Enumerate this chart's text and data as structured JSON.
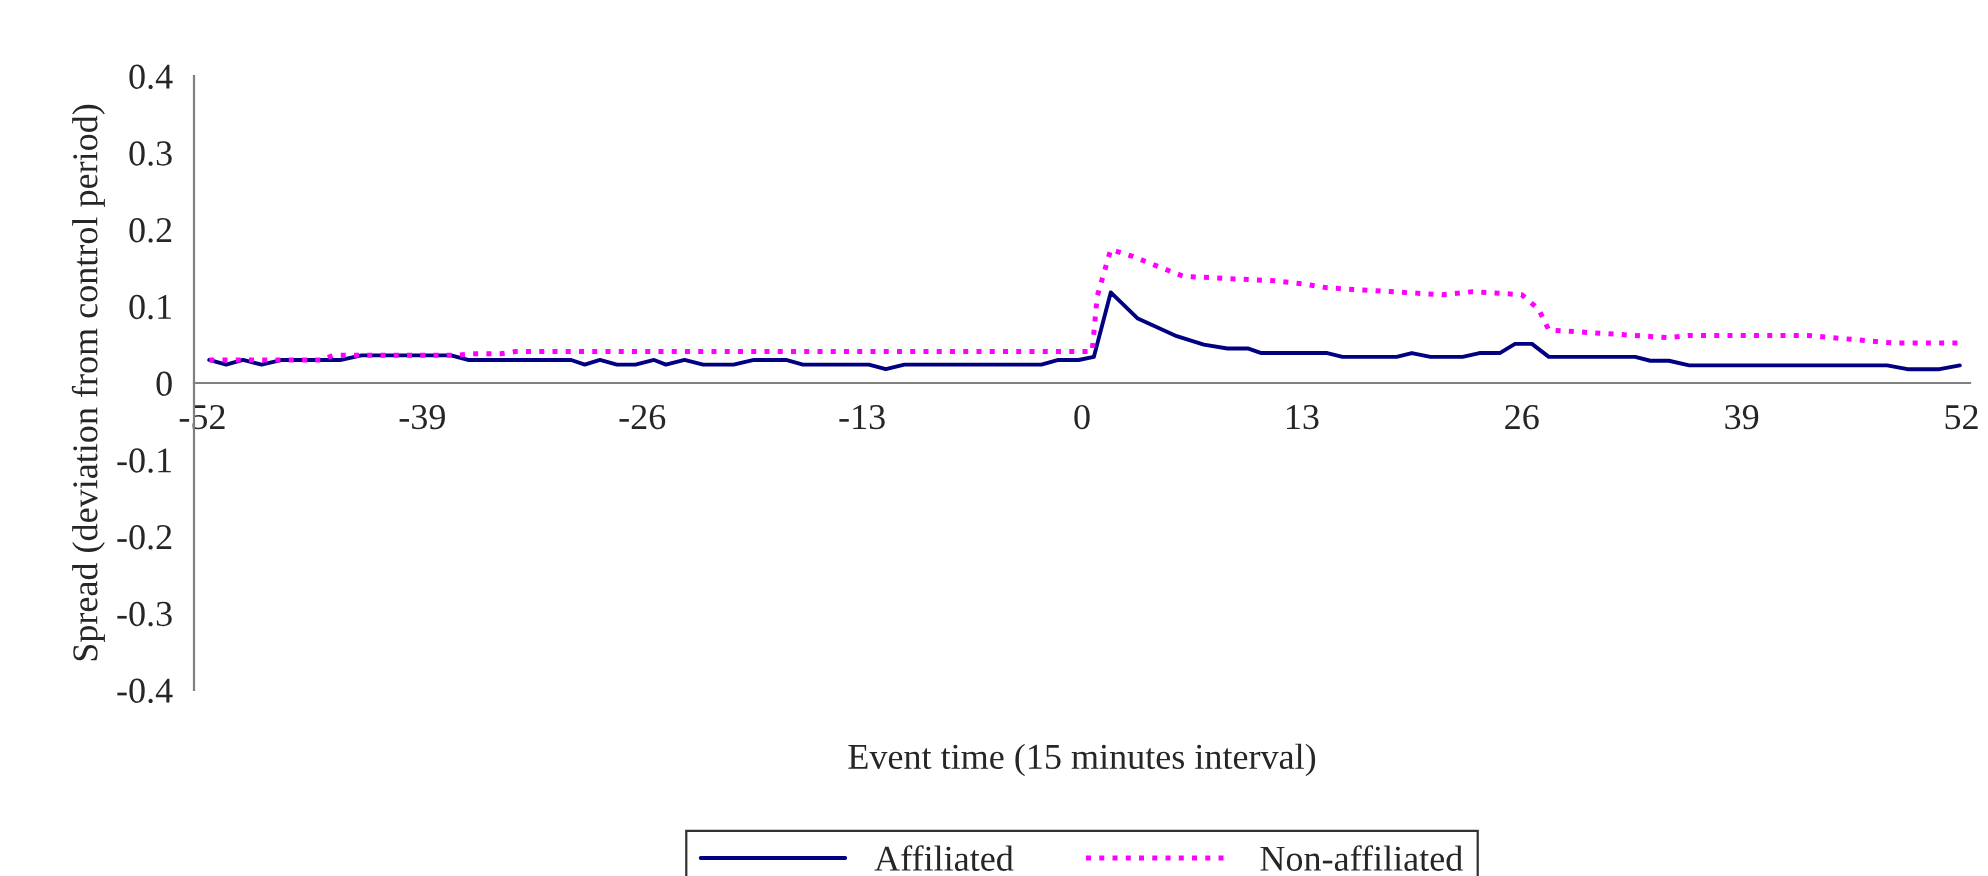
{
  "chart_data": {
    "type": "line",
    "xlabel": "Event time (15 minutes interval)",
    "ylabel": "Spread (deviation from control period)",
    "xlim": [
      -52.5,
      52.5
    ],
    "xticks": [
      -52,
      -39,
      -26,
      -13,
      0,
      13,
      26,
      39,
      52
    ],
    "ylim": [
      -0.4,
      0.4
    ],
    "yticks": [
      -0.4,
      -0.3,
      -0.2,
      -0.1,
      0,
      0.1,
      0.2,
      0.3,
      0.4
    ],
    "grid": false,
    "legend": "bottom",
    "marker": "none",
    "series": [
      {
        "name": "Affiliated",
        "color": "#000080",
        "line_style": "solid",
        "x": [
          -51.6,
          -50.6,
          -49.6,
          -48.5,
          -47.3,
          -43.8,
          -42.6,
          -37.3,
          -36.3,
          -30.2,
          -29.4,
          -28.5,
          -27.5,
          -26.4,
          -25.3,
          -24.6,
          -23.5,
          -22.4,
          -20.6,
          -19.4,
          -17.5,
          -16.5,
          -12.6,
          -11.6,
          -10.5,
          -2.4,
          -1.4,
          -0.2,
          0.7,
          1.7,
          3.3,
          4.5,
          5.6,
          7.2,
          8.6,
          9.8,
          10.6,
          14.5,
          15.4,
          18.6,
          19.5,
          20.6,
          22.5,
          23.5,
          24.7,
          25.6,
          26.6,
          27.6,
          32.7,
          33.6,
          34.7,
          35.9,
          47.6,
          48.8,
          50.7,
          51.9
        ],
        "values": [
          0.03,
          0.024,
          0.03,
          0.024,
          0.03,
          0.03,
          0.036,
          0.036,
          0.03,
          0.03,
          0.024,
          0.03,
          0.024,
          0.024,
          0.03,
          0.024,
          0.03,
          0.024,
          0.024,
          0.03,
          0.03,
          0.024,
          0.024,
          0.018,
          0.024,
          0.024,
          0.03,
          0.03,
          0.034,
          0.118,
          0.084,
          0.072,
          0.061,
          0.05,
          0.045,
          0.045,
          0.039,
          0.039,
          0.034,
          0.034,
          0.039,
          0.034,
          0.034,
          0.039,
          0.039,
          0.051,
          0.051,
          0.034,
          0.034,
          0.029,
          0.029,
          0.023,
          0.023,
          0.018,
          0.018,
          0.023
        ]
      },
      {
        "name": "Non-affiliated",
        "color": "#ff00ff",
        "line_style": "dotted",
        "x": [
          -51.6,
          -44.9,
          -44.3,
          -37.0,
          -36.0,
          -34.4,
          -33.5,
          0.6,
          0.9,
          1.7,
          3.0,
          4.7,
          6.0,
          11.5,
          13.1,
          14.5,
          21.3,
          23.1,
          26.0,
          27.0,
          27.6,
          32.7,
          34.7,
          35.9,
          42.9,
          48.0,
          51.9
        ],
        "values": [
          0.03,
          0.03,
          0.036,
          0.036,
          0.038,
          0.038,
          0.041,
          0.041,
          0.113,
          0.174,
          0.165,
          0.15,
          0.139,
          0.133,
          0.129,
          0.124,
          0.115,
          0.119,
          0.115,
          0.096,
          0.069,
          0.062,
          0.059,
          0.062,
          0.062,
          0.052,
          0.052
        ]
      }
    ]
  }
}
